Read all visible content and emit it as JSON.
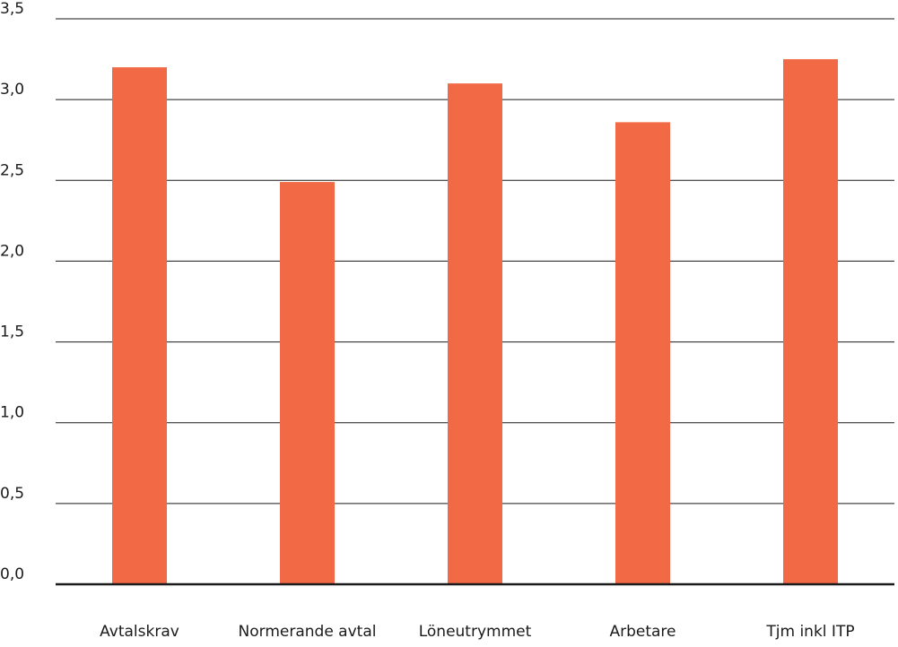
{
  "chart_data": {
    "type": "bar",
    "categories": [
      "Avtalskrav",
      "Normerande avtal",
      "Löneutrymmet",
      "Arbetare",
      "Tjm inkl ITP"
    ],
    "values": [
      3.2,
      2.49,
      3.1,
      2.86,
      3.25
    ],
    "y_ticks": [
      "0,0",
      "0,5",
      "1,0",
      "1,5",
      "2,0",
      "2,5",
      "3,0",
      "3,5"
    ],
    "ylim": [
      0,
      3.5
    ],
    "title": "",
    "xlabel": "",
    "ylabel": "",
    "grid": true,
    "bar_color": "#f26a45"
  }
}
